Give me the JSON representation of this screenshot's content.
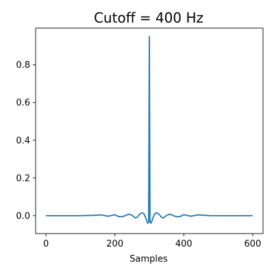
{
  "chart_data": {
    "type": "line",
    "title": "Cutoff = 400 Hz",
    "xlabel": "Samples",
    "ylabel": "",
    "xlim": [
      -30,
      630
    ],
    "ylim": [
      -0.095,
      0.995
    ],
    "xticks": [
      0,
      200,
      400,
      600
    ],
    "yticks": [
      0.0,
      0.2,
      0.4,
      0.6,
      0.8
    ],
    "grid": false,
    "legend": "none",
    "series": [
      {
        "color": "#1f77b4",
        "x": [
          0,
          60,
          100,
          140,
          160,
          180,
          200,
          210,
          220,
          230,
          240,
          250,
          255,
          260,
          265,
          270,
          275,
          280,
          285,
          290,
          295,
          298,
          300,
          302,
          305,
          310,
          315,
          320,
          325,
          330,
          335,
          340,
          345,
          350,
          360,
          370,
          380,
          390,
          400,
          420,
          440,
          460,
          480,
          500,
          540,
          600
        ],
        "y": [
          0.0,
          0.0,
          0.0,
          0.002,
          0.004,
          -0.003,
          0.005,
          -0.004,
          -0.006,
          0.0,
          0.008,
          0.002,
          -0.006,
          -0.012,
          -0.008,
          0.004,
          0.012,
          0.015,
          0.008,
          -0.015,
          -0.04,
          -0.035,
          0.95,
          -0.035,
          -0.04,
          -0.015,
          0.008,
          0.015,
          0.012,
          0.004,
          -0.008,
          -0.012,
          -0.006,
          0.002,
          0.008,
          0.0,
          -0.006,
          -0.004,
          0.005,
          -0.003,
          0.004,
          0.002,
          0.0,
          0.0,
          0.0,
          0.0
        ]
      }
    ]
  }
}
